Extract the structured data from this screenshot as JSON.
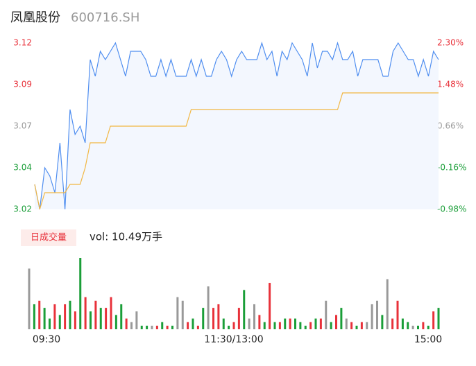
{
  "chart_data": [
    {
      "type": "line",
      "title": "凤凰股份",
      "subtitle": "600716.SH",
      "xlim": [
        0,
        80
      ],
      "ylim": [
        3.02,
        3.12
      ],
      "yticks": [
        {
          "value": 3.12,
          "label": "3.12"
        },
        {
          "value": 3.095,
          "label": "3.09"
        },
        {
          "value": 3.07,
          "label": "3.07"
        },
        {
          "value": 3.045,
          "label": "3.04"
        },
        {
          "value": 3.02,
          "label": "3.02"
        }
      ],
      "y2lim": [
        -0.98,
        2.3
      ],
      "y2ticks": [
        {
          "value": 2.3,
          "label": "2.30%"
        },
        {
          "value": 1.48,
          "label": "1.48%"
        },
        {
          "value": 0.66,
          "label": "0.66%"
        },
        {
          "value": -0.16,
          "label": "-0.16%"
        },
        {
          "value": -0.98,
          "label": "-0.98%"
        }
      ],
      "tick_colors": [
        "#e8313a",
        "#e8313a",
        "#999999",
        "#1a9e38",
        "#1a9e38"
      ],
      "area_color": "#f3f7fe",
      "series": [
        {
          "name": "price",
          "color": "#4f8ef0",
          "values": [
            3.035,
            3.02,
            3.045,
            3.04,
            3.03,
            3.06,
            3.02,
            3.08,
            3.065,
            3.07,
            3.06,
            3.11,
            3.1,
            3.115,
            3.11,
            3.115,
            3.12,
            3.11,
            3.1,
            3.115,
            3.115,
            3.115,
            3.11,
            3.1,
            3.1,
            3.11,
            3.1,
            3.11,
            3.1,
            3.1,
            3.1,
            3.11,
            3.1,
            3.11,
            3.1,
            3.1,
            3.11,
            3.115,
            3.11,
            3.1,
            3.11,
            3.115,
            3.11,
            3.11,
            3.11,
            3.12,
            3.11,
            3.115,
            3.1,
            3.115,
            3.11,
            3.12,
            3.115,
            3.11,
            3.1,
            3.12,
            3.105,
            3.115,
            3.115,
            3.11,
            3.12,
            3.11,
            3.11,
            3.115,
            3.1,
            3.11,
            3.11,
            3.11,
            3.11,
            3.1,
            3.1,
            3.115,
            3.12,
            3.115,
            3.11,
            3.11,
            3.1,
            3.11,
            3.1,
            3.115,
            3.11
          ]
        },
        {
          "name": "average",
          "color": "#f2b742",
          "values": [
            3.035,
            3.02,
            3.03,
            3.03,
            3.03,
            3.03,
            3.03,
            3.035,
            3.035,
            3.035,
            3.045,
            3.06,
            3.06,
            3.06,
            3.06,
            3.07,
            3.07,
            3.07,
            3.07,
            3.07,
            3.07,
            3.07,
            3.07,
            3.07,
            3.07,
            3.07,
            3.07,
            3.07,
            3.07,
            3.07,
            3.07,
            3.08,
            3.08,
            3.08,
            3.08,
            3.08,
            3.08,
            3.08,
            3.08,
            3.08,
            3.08,
            3.08,
            3.08,
            3.08,
            3.08,
            3.08,
            3.08,
            3.08,
            3.08,
            3.08,
            3.08,
            3.08,
            3.08,
            3.08,
            3.08,
            3.08,
            3.08,
            3.08,
            3.08,
            3.08,
            3.08,
            3.09,
            3.09,
            3.09,
            3.09,
            3.09,
            3.09,
            3.09,
            3.09,
            3.09,
            3.09,
            3.09,
            3.09,
            3.09,
            3.09,
            3.09,
            3.09,
            3.09,
            3.09,
            3.09,
            3.09
          ]
        }
      ]
    },
    {
      "type": "bar",
      "label": "日成交量",
      "total": "vol: 10.49万手",
      "xlim": [
        0,
        80
      ],
      "ylim": [
        0,
        100
      ],
      "xticks": [
        {
          "value": 0,
          "label": "09:30"
        },
        {
          "value": 40,
          "label": "11:30/13:00"
        },
        {
          "value": 80,
          "label": "15:00"
        }
      ],
      "up_color": "#e8313a",
      "down_color": "#1a9e38",
      "flat_color": "#999999",
      "values": [
        85,
        35,
        40,
        30,
        15,
        35,
        20,
        35,
        40,
        25,
        100,
        45,
        25,
        40,
        30,
        30,
        45,
        20,
        35,
        15,
        10,
        25,
        5,
        5,
        5,
        5,
        10,
        5,
        5,
        45,
        40,
        10,
        15,
        5,
        30,
        60,
        30,
        35,
        15,
        5,
        10,
        30,
        55,
        15,
        35,
        20,
        10,
        65,
        10,
        10,
        15,
        15,
        15,
        10,
        5,
        10,
        15,
        15,
        40,
        10,
        20,
        30,
        15,
        10,
        5,
        10,
        10,
        35,
        40,
        20,
        70,
        15,
        40,
        15,
        10,
        5,
        5,
        10,
        5,
        25,
        30
      ]
    }
  ]
}
